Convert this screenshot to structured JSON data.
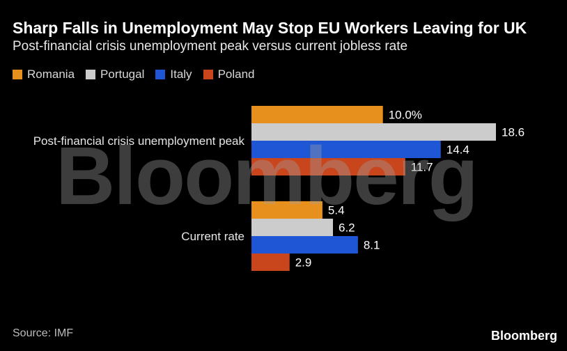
{
  "header": {
    "title": "Sharp Falls in Unemployment May Stop EU Workers Leaving for UK",
    "subtitle": "Post-financial crisis unemployment peak versus current jobless rate"
  },
  "footer": {
    "source": "Source: IMF",
    "brand": "Bloomberg"
  },
  "watermark": "Bloomberg",
  "chart_data": {
    "type": "bar",
    "orientation": "horizontal",
    "title": "Sharp Falls in Unemployment May Stop EU Workers Leaving for UK",
    "subtitle": "Post-financial crisis unemployment peak versus current jobless rate",
    "categories": [
      "Post-financial crisis unemployment peak",
      "Current rate"
    ],
    "series": [
      {
        "name": "Romania",
        "color": "#e8901e",
        "values": [
          10.0,
          5.4
        ],
        "labels": [
          "10.0%",
          "5.4"
        ]
      },
      {
        "name": "Portugal",
        "color": "#cccccc",
        "values": [
          18.6,
          6.2
        ],
        "labels": [
          "18.6",
          "6.2"
        ]
      },
      {
        "name": "Italy",
        "color": "#1e56d6",
        "values": [
          14.4,
          8.1
        ],
        "labels": [
          "14.4",
          "8.1"
        ]
      },
      {
        "name": "Poland",
        "color": "#c9451c",
        "values": [
          11.7,
          2.9
        ],
        "labels": [
          "11.7",
          "2.9"
        ]
      }
    ],
    "xlim": [
      0,
      18.6
    ],
    "legend_position": "top-left",
    "grid": false
  }
}
